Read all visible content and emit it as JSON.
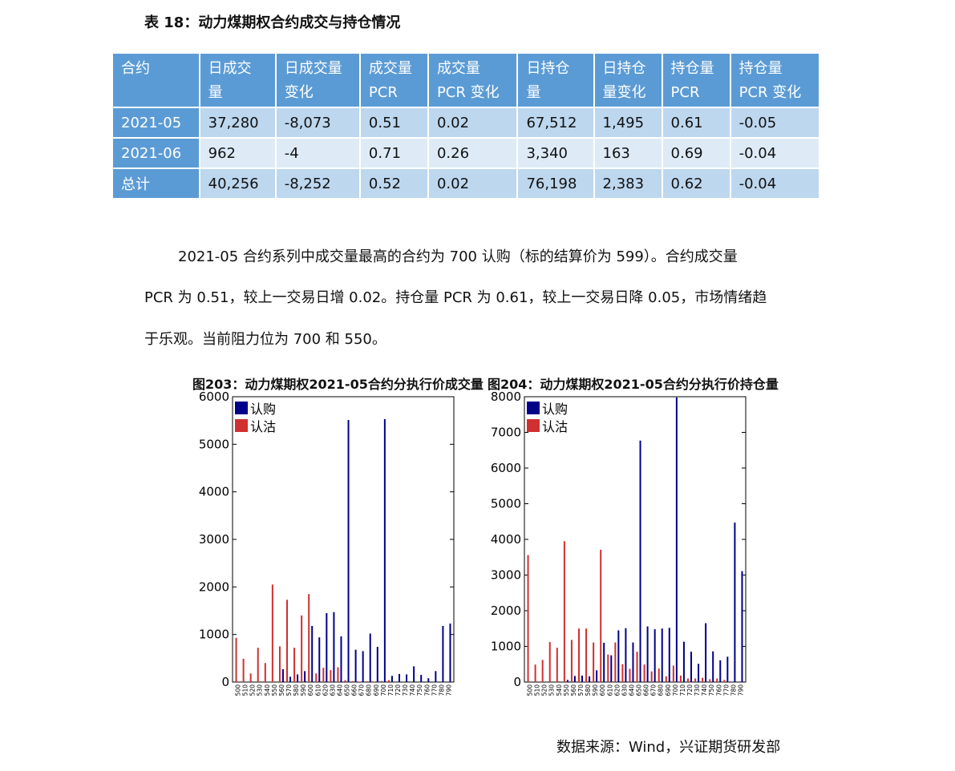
{
  "table": {
    "title": "表 18：动力煤期权合约成交与持仓情况",
    "headers": [
      [
        "合约"
      ],
      [
        "日成交",
        "量"
      ],
      [
        "日成交量",
        "变化"
      ],
      [
        "成交量",
        "PCR"
      ],
      [
        "成交量",
        "PCR 变化"
      ],
      [
        "日持仓",
        "量"
      ],
      [
        "日持仓",
        "量变化"
      ],
      [
        "持仓量",
        "PCR"
      ],
      [
        "持仓量",
        "PCR 变化"
      ]
    ],
    "rows": [
      [
        "2021-05",
        "37,280",
        "-8,073",
        "0.51",
        "0.02",
        "67,512",
        "1,495",
        "0.61",
        "-0.05"
      ],
      [
        "2021-06",
        "962",
        "-4",
        "0.71",
        "0.26",
        "3,340",
        "163",
        "0.69",
        "-0.04"
      ],
      [
        "总计",
        "40,256",
        "-8,252",
        "0.52",
        "0.02",
        "76,198",
        "2,383",
        "0.62",
        "-0.04"
      ]
    ]
  },
  "paragraph": {
    "line1": "2021-05 合约系列中成交量最高的合约为 700 认购（标的结算价为 599）。合约成交量",
    "line2": "PCR 为 0.51，较上一交易日增 0.02。持仓量 PCR 为 0.61，较上一交易日降 0.05，市场情绪趋",
    "line3": "于乐观。当前阻力位为 700 和 550。"
  },
  "colors": {
    "call": "#00008b",
    "put": "#d03030",
    "header_bg": "#5b9bd5",
    "row_dark": "#bdd7ee",
    "row_light": "#deebf7"
  },
  "chart_data": [
    {
      "type": "bar",
      "title": "图203：动力煤期权2021-05合约分执行价成交量",
      "categories": [
        "500",
        "510",
        "520",
        "530",
        "540",
        "550",
        "560",
        "570",
        "580",
        "590",
        "600",
        "610",
        "620",
        "630",
        "640",
        "650",
        "660",
        "670",
        "680",
        "690",
        "700",
        "710",
        "720",
        "730",
        "740",
        "750",
        "760",
        "770",
        "780",
        "790"
      ],
      "series": [
        {
          "name": "认购",
          "values": [
            0,
            0,
            0,
            0,
            0,
            0,
            270,
            110,
            160,
            230,
            1180,
            940,
            1450,
            1470,
            960,
            5510,
            680,
            650,
            1020,
            740,
            5530,
            130,
            170,
            160,
            330,
            150,
            80,
            230,
            1180,
            1230
          ]
        },
        {
          "name": "认沽",
          "values": [
            930,
            490,
            180,
            720,
            400,
            2050,
            750,
            1730,
            720,
            1400,
            1850,
            180,
            300,
            250,
            310,
            40,
            20,
            10,
            15,
            10,
            20,
            40,
            0,
            0,
            0,
            0,
            0,
            0,
            0,
            0
          ]
        }
      ],
      "ylim": [
        0,
        6000
      ],
      "yticks": [
        0,
        1000,
        2000,
        3000,
        4000,
        5000,
        6000
      ],
      "legend": "top-left"
    },
    {
      "type": "bar",
      "title": "图204：动力煤期权2021-05合约分执行价持仓量",
      "categories": [
        "500",
        "510",
        "520",
        "530",
        "540",
        "550",
        "560",
        "570",
        "580",
        "590",
        "600",
        "610",
        "620",
        "630",
        "640",
        "650",
        "660",
        "670",
        "680",
        "690",
        "700",
        "710",
        "720",
        "730",
        "740",
        "750",
        "760",
        "770",
        "780",
        "790"
      ],
      "series": [
        {
          "name": "认购",
          "values": [
            0,
            0,
            0,
            0,
            0,
            60,
            170,
            180,
            160,
            330,
            1100,
            750,
            1450,
            1510,
            1110,
            6770,
            1560,
            1480,
            1500,
            1520,
            7980,
            1130,
            850,
            510,
            1650,
            860,
            610,
            710,
            4470,
            3110
          ]
        },
        {
          "name": "认沽",
          "values": [
            3560,
            490,
            620,
            1120,
            960,
            3950,
            1180,
            1500,
            1500,
            1110,
            3710,
            770,
            1110,
            500,
            370,
            850,
            490,
            300,
            380,
            160,
            460,
            180,
            100,
            100,
            120,
            80,
            100,
            60,
            0,
            0
          ]
        }
      ],
      "ylim": [
        0,
        8000
      ],
      "yticks": [
        0,
        1000,
        2000,
        3000,
        4000,
        5000,
        6000,
        7000,
        8000
      ],
      "legend": "top-left"
    }
  ],
  "source": "数据来源：Wind，兴证期货研发部"
}
